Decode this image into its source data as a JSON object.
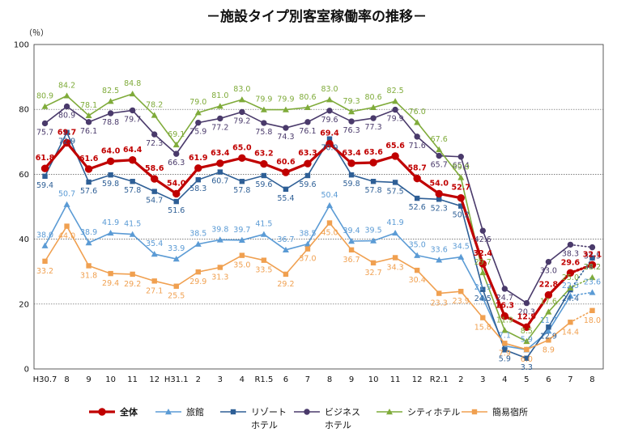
{
  "chart_data": {
    "type": "line",
    "title": "－施設タイプ別客室稼働率の推移－",
    "unit": "（％）",
    "ylim": [
      0,
      100
    ],
    "yticks": [
      0,
      20,
      40,
      60,
      80,
      100
    ],
    "grid": true,
    "legend_position": "bottom",
    "categories": [
      "H30.7",
      "8",
      "9",
      "10",
      "11",
      "12",
      "H31.1",
      "2",
      "3",
      "4",
      "R1.5",
      "6",
      "7",
      "8",
      "9",
      "10",
      "11",
      "12",
      "R2.1",
      "2",
      "3",
      "4",
      "5",
      "6",
      "7",
      "8"
    ],
    "series": [
      {
        "name": "全体",
        "color": "#c00000",
        "marker": "circle",
        "emphasis": true,
        "last_dotted": true,
        "values": [
          61.8,
          69.7,
          61.6,
          64.0,
          64.4,
          58.6,
          54.0,
          61.9,
          63.4,
          65.0,
          63.2,
          60.6,
          63.3,
          69.4,
          63.4,
          63.6,
          65.6,
          58.7,
          54.0,
          52.7,
          32.4,
          16.3,
          12.9,
          22.8,
          29.6,
          32.1
        ]
      },
      {
        "name": "旅館",
        "color": "#5b9bd5",
        "marker": "triangle",
        "last_dotted": true,
        "values": [
          38.0,
          50.7,
          38.9,
          41.9,
          41.5,
          35.4,
          33.9,
          38.5,
          39.8,
          39.7,
          41.5,
          36.7,
          38.5,
          50.4,
          39.4,
          39.5,
          41.9,
          35.0,
          33.6,
          34.5,
          21.9,
          7.1,
          5.9,
          11.7,
          22.5,
          23.6
        ]
      },
      {
        "name": "リゾートホテル",
        "name_line1": "リゾート",
        "name_line2": "ホテル",
        "color": "#2e5f96",
        "marker": "square",
        "last_dotted": true,
        "values": [
          59.4,
          72.9,
          57.6,
          59.8,
          57.8,
          54.7,
          51.6,
          58.3,
          60.7,
          57.8,
          59.6,
          55.4,
          59.6,
          70.9,
          59.8,
          57.8,
          57.5,
          52.6,
          52.3,
          50.2,
          24.5,
          5.9,
          3.3,
          12.9,
          24.4,
          34.2
        ]
      },
      {
        "name": "ビジネスホテル",
        "name_line1": "ビジネス",
        "name_line2": "ホテル",
        "color": "#4a3a6b",
        "marker": "circle",
        "last_dotted": true,
        "values": [
          75.7,
          80.9,
          76.1,
          78.8,
          79.7,
          72.3,
          66.3,
          75.9,
          77.2,
          79.2,
          75.8,
          74.3,
          76.1,
          79.6,
          76.3,
          77.3,
          79.9,
          71.6,
          65.7,
          65.4,
          42.6,
          24.7,
          20.3,
          33.0,
          38.3,
          37.5
        ]
      },
      {
        "name": "シティホテル",
        "color": "#7fab3a",
        "marker": "triangle",
        "last_dotted": true,
        "values": [
          80.9,
          84.2,
          78.1,
          82.5,
          84.8,
          78.2,
          69.1,
          79.0,
          81.0,
          83.0,
          79.9,
          79.9,
          80.6,
          83.0,
          79.3,
          80.6,
          82.5,
          76.0,
          67.6,
          59.0,
          29.7,
          11.9,
          8.5,
          17.6,
          25.0,
          28.2
        ]
      },
      {
        "name": "簡易宿所",
        "color": "#f0a050",
        "marker": "square",
        "last_dotted": true,
        "values": [
          33.2,
          44.0,
          31.8,
          29.4,
          29.2,
          27.1,
          25.5,
          29.9,
          31.3,
          35.0,
          33.5,
          29.2,
          37.0,
          45.0,
          36.7,
          32.7,
          34.3,
          30.4,
          23.3,
          23.9,
          15.8,
          7.9,
          6.0,
          8.9,
          14.4,
          18.0
        ]
      }
    ]
  }
}
